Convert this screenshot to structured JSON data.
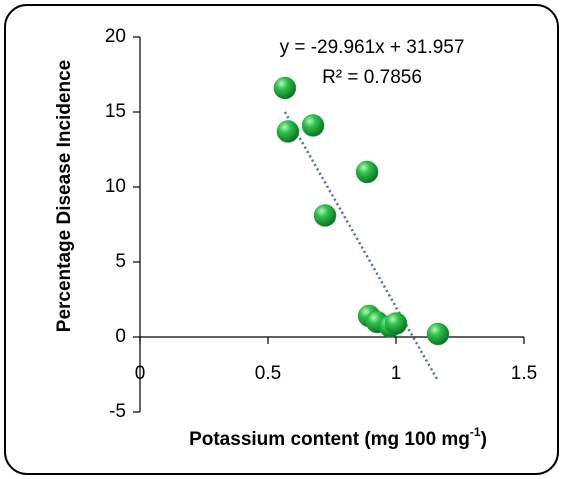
{
  "chart_data": {
    "type": "scatter",
    "xlabel": {
      "text": "Potassium content (mg 100 mg",
      "sup": "-1",
      "end": ")"
    },
    "ylabel": "Percentage Disease Incidence",
    "x": [
      0.566,
      0.578,
      0.676,
      0.887,
      0.723,
      0.895,
      0.926,
      0.977,
      1.0,
      1.164
    ],
    "values": [
      16.6,
      13.7,
      14.1,
      11.0,
      8.1,
      1.4,
      1.0,
      0.7,
      0.9,
      0.2
    ],
    "color": "#16a83a",
    "trendline": {
      "equation": "y = -29.961x + 31.957",
      "r2_label": "R² = 0.7856",
      "slope": -29.961,
      "intercept": 31.957,
      "r2": 0.7856,
      "color": "#4a6fa5"
    },
    "xlim": [
      0,
      1.5
    ],
    "xticks": [
      0,
      0.5,
      1,
      1.5
    ],
    "ylim": [
      -5,
      20
    ],
    "yticks": [
      -5,
      0,
      5,
      10,
      15,
      20
    ]
  }
}
